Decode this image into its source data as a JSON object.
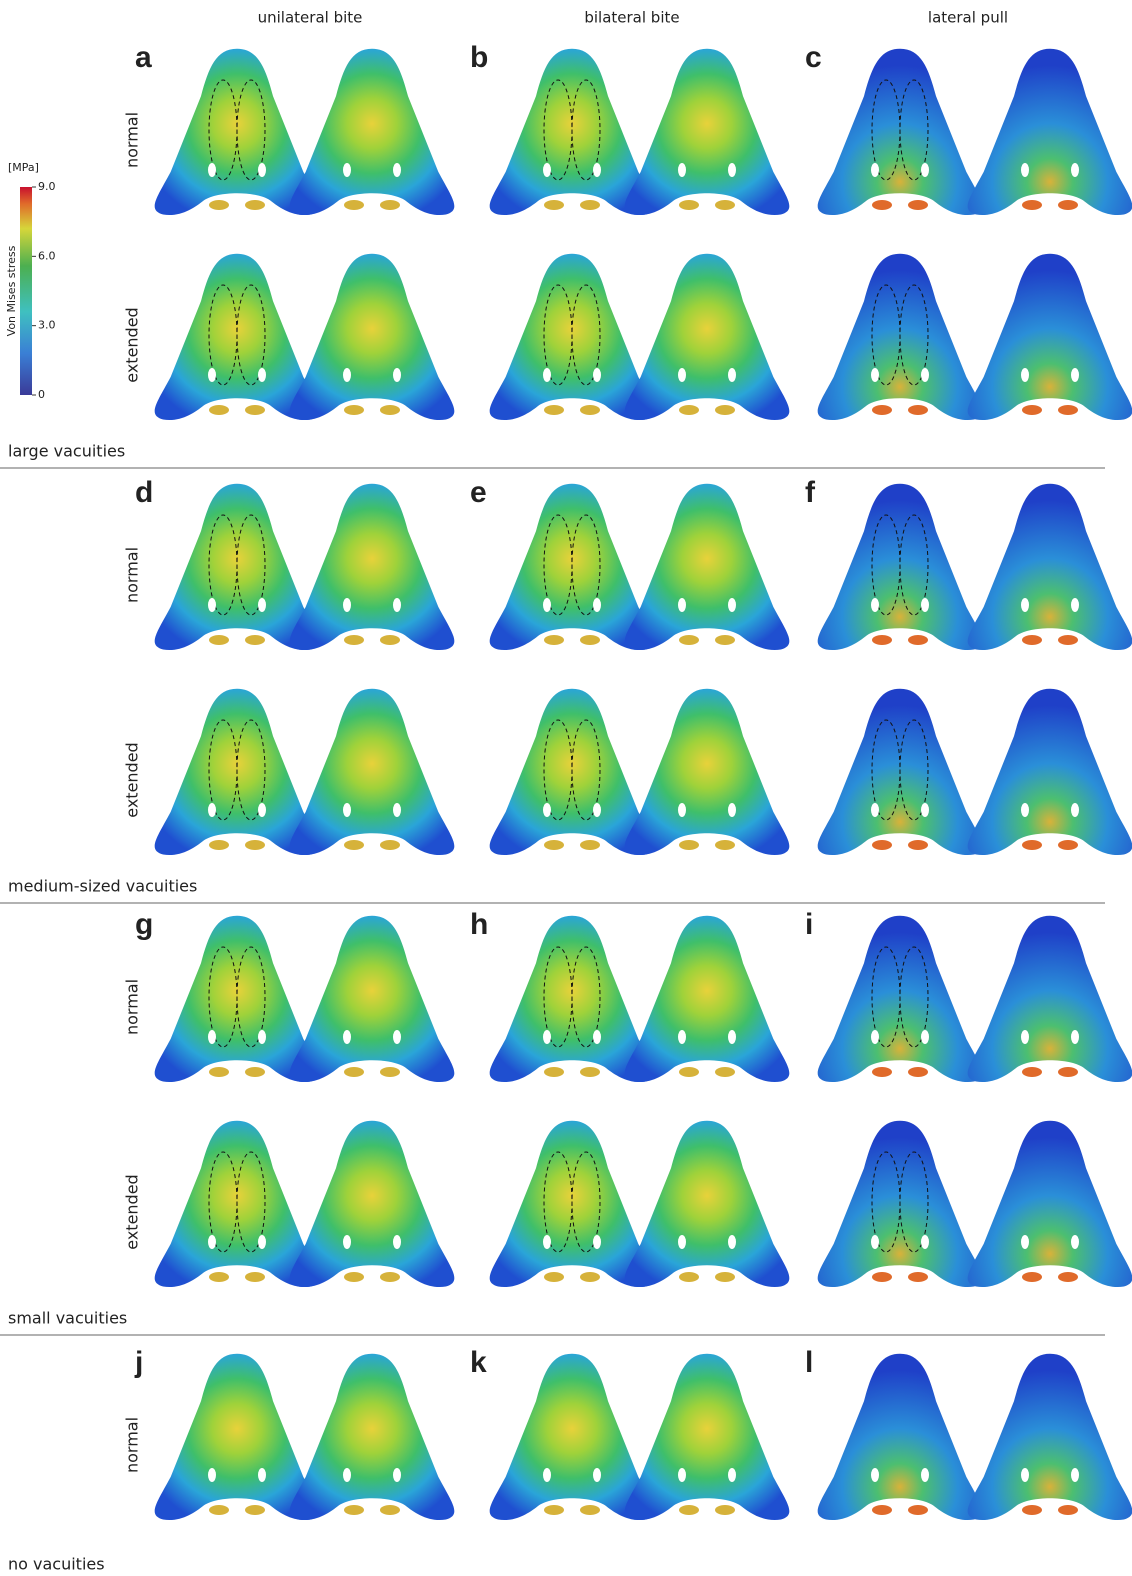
{
  "columns": [
    "unilateral bite",
    "bilateral bite",
    "lateral pull"
  ],
  "colorbar": {
    "unit": "[MPa]",
    "label": "Von Mises stress",
    "lim": [
      0,
      9
    ],
    "ticks": [
      0,
      {
        "value": 3,
        "label": "3.0"
      },
      {
        "value": 6,
        "label": "6.0"
      },
      {
        "value": 9,
        "label": "9.0"
      }
    ]
  },
  "groups": [
    {
      "label": "large vacuities",
      "panels": [
        "a",
        "b",
        "c"
      ],
      "rows": [
        "normal",
        "extended"
      ]
    },
    {
      "label": "medium-sized vacuities",
      "panels": [
        "d",
        "e",
        "f"
      ],
      "rows": [
        "normal",
        "extended"
      ]
    },
    {
      "label": "small  vacuities",
      "panels": [
        "g",
        "h",
        "i"
      ],
      "rows": [
        "normal",
        "extended"
      ]
    },
    {
      "label": "no vacuities",
      "panels": [
        "j",
        "k",
        "l"
      ],
      "rows": [
        "normal"
      ]
    }
  ]
}
